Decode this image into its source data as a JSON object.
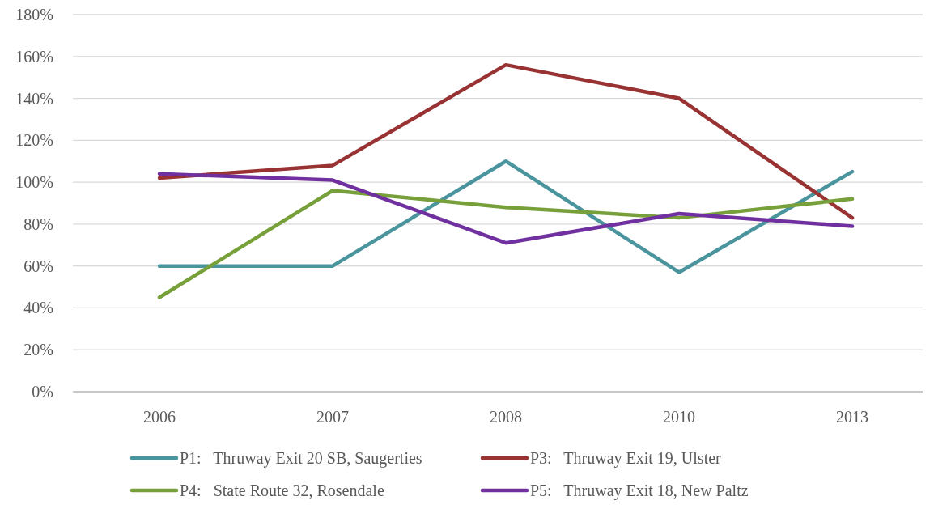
{
  "chart_data": {
    "type": "line",
    "categories": [
      "2006",
      "2007",
      "2008",
      "2010",
      "2013"
    ],
    "series": [
      {
        "name": "P1:   Thruway Exit 20 SB, Saugerties",
        "color": "#4a949e",
        "values": [
          60,
          60,
          110,
          57,
          105
        ]
      },
      {
        "name": "P3:   Thruway Exit 19, Ulster",
        "color": "#993333",
        "values": [
          102,
          108,
          156,
          140,
          83
        ]
      },
      {
        "name": "P4:   State Route 32, Rosendale",
        "color": "#77a03a",
        "values": [
          45,
          96,
          88,
          83,
          92
        ]
      },
      {
        "name": "P5:   Thruway Exit 18, New Paltz",
        "color": "#7030a0",
        "values": [
          104,
          101,
          71,
          85,
          79
        ]
      }
    ],
    "ylim": [
      0,
      180
    ],
    "yticks": [
      {
        "value": 0,
        "label": "0%"
      },
      {
        "value": 20,
        "label": "20%"
      },
      {
        "value": 40,
        "label": "40%"
      },
      {
        "value": 60,
        "label": "60%"
      },
      {
        "value": 80,
        "label": "80%"
      },
      {
        "value": 100,
        "label": "100%"
      },
      {
        "value": 120,
        "label": "120%"
      },
      {
        "value": 140,
        "label": "140%"
      },
      {
        "value": 160,
        "label": "160%"
      },
      {
        "value": 180,
        "label": "180%"
      }
    ],
    "grid": "y",
    "legend": "bottom",
    "marker": "none",
    "line_style": "solid"
  }
}
